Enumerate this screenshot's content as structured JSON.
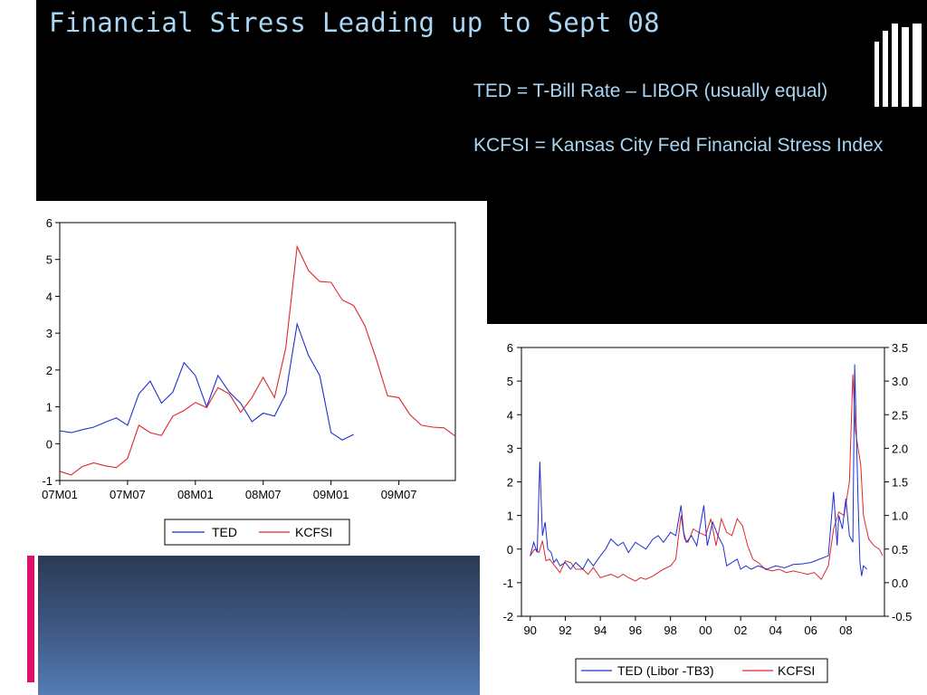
{
  "slide": {
    "title": "Financial Stress Leading up to Sept 08",
    "note_ted": "TED = T-Bill Rate – LIBOR (usually equal)",
    "note_kcfsi": "KCFSI = Kansas City Fed Financial Stress Index",
    "colors": {
      "background": "#000000",
      "title": "#a9d6f5",
      "accent_pink": "#e0116c",
      "panel_blue": "#3f5a85"
    }
  },
  "chart_data": [
    {
      "type": "line",
      "x_tick_labels": [
        "07M01",
        "07M07",
        "08M01",
        "08M07",
        "09M01",
        "09M07"
      ],
      "x_tick_index": [
        0,
        6,
        12,
        18,
        24,
        30
      ],
      "ylim": [
        -1,
        6
      ],
      "yticks": [
        6,
        5,
        4,
        3,
        2,
        1,
        0,
        -1
      ],
      "grid": false,
      "legend": "bottom",
      "series": [
        {
          "name": "TED",
          "color": "#1f2fd0",
          "values": [
            0.35,
            0.3,
            0.38,
            0.45,
            0.58,
            0.7,
            0.5,
            1.35,
            1.7,
            1.1,
            1.4,
            2.2,
            1.85,
            1.0,
            1.85,
            1.4,
            1.1,
            0.6,
            0.83,
            0.75,
            1.35,
            3.25,
            2.4,
            1.85,
            0.3,
            0.1,
            0.25
          ]
        },
        {
          "name": "KCFSI",
          "color": "#e0262a",
          "values": [
            -0.75,
            -0.85,
            -0.62,
            -0.52,
            -0.6,
            -0.65,
            -0.4,
            0.5,
            0.3,
            0.22,
            0.75,
            0.9,
            1.12,
            0.98,
            1.52,
            1.35,
            0.85,
            1.25,
            1.8,
            1.25,
            2.6,
            5.35,
            4.7,
            4.4,
            4.38,
            3.9,
            3.75,
            3.2,
            2.3,
            1.3,
            1.25,
            0.78,
            0.5,
            0.45,
            0.43,
            0.2
          ]
        }
      ]
    },
    {
      "type": "line",
      "x_tick_labels": [
        "90",
        "92",
        "94",
        "96",
        "98",
        "00",
        "02",
        "04",
        "06",
        "08"
      ],
      "x_tick_years": [
        1990,
        1992,
        1994,
        1996,
        1998,
        2000,
        2002,
        2004,
        2006,
        2008
      ],
      "x_range": [
        1989.5,
        2010.2
      ],
      "ylim": [
        -2,
        6
      ],
      "yticks": [
        6,
        5,
        4,
        3,
        2,
        1,
        0,
        -1,
        -2
      ],
      "ylim_right": [
        -0.5,
        3.5
      ],
      "yticks_right": [
        3.5,
        3.0,
        2.5,
        2.0,
        1.5,
        1.0,
        0.5,
        0.0,
        -0.5
      ],
      "yticks_right_labels": [
        "3.5",
        "3.0",
        "2.5",
        "2.0",
        "1.5",
        "1.0",
        "0.5",
        "0.0",
        "-0.5"
      ],
      "grid": false,
      "legend": "bottom",
      "series": [
        {
          "name": "TED (Libor -TB3)",
          "color": "#1f2fd0",
          "axis": "right",
          "x": [
            1990.0,
            1990.2,
            1990.4,
            1990.55,
            1990.7,
            1990.85,
            1991.0,
            1991.2,
            1991.35,
            1991.5,
            1991.7,
            1992.0,
            1992.3,
            1992.6,
            1993.0,
            1993.3,
            1993.6,
            1994.0,
            1994.3,
            1994.6,
            1995.0,
            1995.3,
            1995.6,
            1996.0,
            1996.3,
            1996.6,
            1997.0,
            1997.3,
            1997.6,
            1998.0,
            1998.3,
            1998.6,
            1998.75,
            1998.9,
            1999.2,
            1999.5,
            1999.9,
            2000.1,
            2000.4,
            2000.7,
            2001.0,
            2001.2,
            2001.5,
            2001.8,
            2002.0,
            2002.3,
            2002.6,
            2003.0,
            2003.5,
            2004.0,
            2004.5,
            2005.0,
            2005.5,
            2006.0,
            2006.5,
            2007.0,
            2007.3,
            2007.5,
            2007.6,
            2007.8,
            2008.0,
            2008.2,
            2008.4,
            2008.5,
            2008.6,
            2008.7,
            2008.8,
            2008.9,
            2009.0,
            2009.2
          ],
          "values": [
            0.4,
            0.6,
            0.45,
            1.8,
            0.7,
            0.9,
            0.5,
            0.45,
            0.3,
            0.35,
            0.25,
            0.3,
            0.2,
            0.3,
            0.2,
            0.35,
            0.25,
            0.4,
            0.5,
            0.65,
            0.55,
            0.6,
            0.45,
            0.6,
            0.55,
            0.5,
            0.65,
            0.7,
            0.6,
            0.75,
            0.7,
            1.15,
            0.75,
            0.6,
            0.7,
            0.55,
            1.15,
            0.55,
            0.9,
            0.7,
            0.55,
            0.25,
            0.3,
            0.35,
            0.2,
            0.25,
            0.2,
            0.25,
            0.2,
            0.25,
            0.22,
            0.27,
            0.28,
            0.3,
            0.35,
            0.4,
            1.35,
            0.55,
            1.0,
            0.8,
            1.25,
            0.7,
            0.6,
            3.25,
            2.2,
            1.2,
            0.3,
            0.1,
            0.25,
            0.2
          ]
        },
        {
          "name": "KCFSI",
          "color": "#e0262a",
          "axis": "left",
          "x": [
            1990.0,
            1990.25,
            1990.5,
            1990.7,
            1990.9,
            1991.1,
            1991.4,
            1991.7,
            1992.0,
            1992.3,
            1992.6,
            1993.0,
            1993.3,
            1993.6,
            1994.0,
            1994.3,
            1994.6,
            1995.0,
            1995.3,
            1995.6,
            1996.0,
            1996.3,
            1996.6,
            1997.0,
            1997.3,
            1997.6,
            1998.0,
            1998.3,
            1998.6,
            1998.8,
            1999.0,
            1999.3,
            1999.6,
            2000.0,
            2000.3,
            2000.6,
            2000.9,
            2001.2,
            2001.5,
            2001.8,
            2002.1,
            2002.4,
            2002.7,
            2003.0,
            2003.4,
            2003.8,
            2004.2,
            2004.6,
            2005.0,
            2005.4,
            2005.8,
            2006.2,
            2006.6,
            2007.0,
            2007.3,
            2007.6,
            2007.9,
            2008.2,
            2008.4,
            2008.55,
            2008.7,
            2008.85,
            2009.0,
            2009.3,
            2009.6,
            2009.9,
            2010.1
          ],
          "values": [
            -0.2,
            0.0,
            -0.1,
            0.25,
            -0.35,
            -0.3,
            -0.5,
            -0.7,
            -0.35,
            -0.4,
            -0.6,
            -0.6,
            -0.75,
            -0.55,
            -0.85,
            -0.8,
            -0.75,
            -0.85,
            -0.75,
            -0.85,
            -0.95,
            -0.85,
            -0.9,
            -0.8,
            -0.7,
            -0.6,
            -0.5,
            -0.3,
            1.0,
            0.3,
            0.2,
            0.6,
            0.5,
            0.4,
            0.9,
            0.1,
            0.9,
            0.5,
            0.4,
            0.9,
            0.7,
            0.1,
            -0.3,
            -0.4,
            -0.6,
            -0.65,
            -0.6,
            -0.7,
            -0.65,
            -0.7,
            -0.75,
            -0.7,
            -0.9,
            -0.5,
            0.6,
            1.1,
            1.0,
            2.0,
            5.2,
            3.5,
            3.0,
            2.5,
            1.0,
            0.3,
            0.1,
            0.0,
            -0.2
          ]
        }
      ]
    }
  ]
}
